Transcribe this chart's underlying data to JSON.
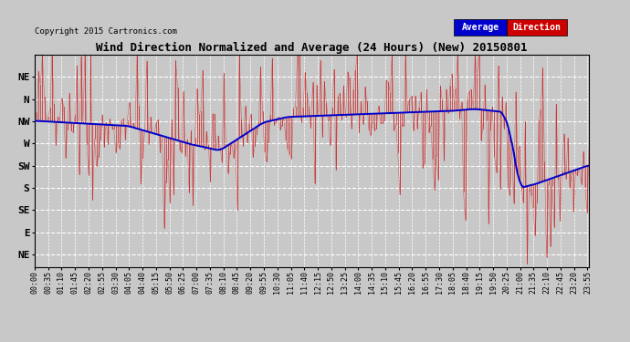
{
  "title": "Wind Direction Normalized and Average (24 Hours) (New) 20150801",
  "copyright": "Copyright 2015 Cartronics.com",
  "background_color": "#c8c8c8",
  "plot_background": "#c8c8c8",
  "y_labels": [
    "NE",
    "N",
    "NW",
    "W",
    "SW",
    "S",
    "SE",
    "E",
    "NE"
  ],
  "y_ticks": [
    337.5,
    315.0,
    292.5,
    270.0,
    247.5,
    225.0,
    202.5,
    180.0,
    157.5
  ],
  "y_min": 145,
  "y_max": 360,
  "legend_avg_color": "#0000cc",
  "legend_dir_color": "#cc0000",
  "line_avg_color": "#0000cc",
  "line_dir_color": "#cc0000",
  "grid_color": "#ffffff",
  "grid_style": "--",
  "seed": 12345
}
